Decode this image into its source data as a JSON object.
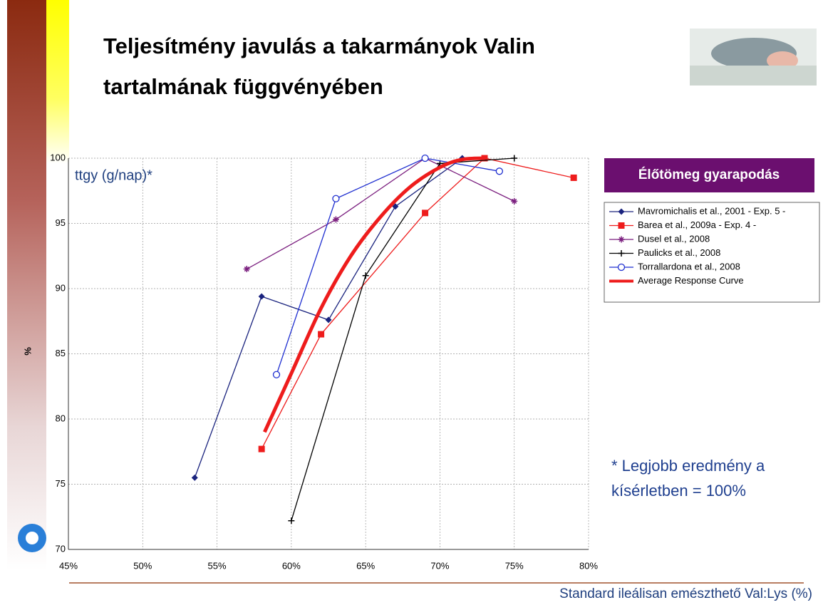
{
  "chart_data": {
    "type": "line",
    "title": "Teljesítmény javulás a takarmányok Valin tartalmának függvényében",
    "ylabel": "%",
    "xlabel": "Standard ileálisan emészthető Val:Lys (%)",
    "annotation": "ttgy (g/nap)*",
    "legend_title": "Élőtömeg gyarapodás",
    "footnote_lines": [
      "* Legjobb eredmény a",
      "kísérletben = 100%"
    ],
    "xlim": [
      45,
      80
    ],
    "xticks": [
      {
        "value": 45,
        "label": "45%"
      },
      {
        "value": 50,
        "label": "50%"
      },
      {
        "value": 55,
        "label": "55%"
      },
      {
        "value": 60,
        "label": "60%"
      },
      {
        "value": 65,
        "label": "65%"
      },
      {
        "value": 70,
        "label": "70%"
      },
      {
        "value": 75,
        "label": "75%"
      },
      {
        "value": 80,
        "label": "80%"
      }
    ],
    "ylim": [
      70,
      100
    ],
    "yticks": [
      70,
      75,
      80,
      85,
      90,
      95,
      100
    ],
    "grid": true,
    "legend": "right",
    "series": [
      {
        "name": "Mavromichalis et al., 2001 - Exp. 5 -",
        "color": "#1a237e",
        "marker": "diamond",
        "x": [
          53.5,
          58,
          62.5,
          67,
          71.5
        ],
        "values": [
          75.5,
          89.4,
          87.6,
          96.3,
          100
        ]
      },
      {
        "name": "Barea et al., 2009a - Exp. 4 -",
        "color": "#ee1c1c",
        "marker": "square",
        "x": [
          58,
          62,
          69,
          73,
          79
        ],
        "values": [
          77.7,
          86.5,
          95.8,
          100,
          98.5
        ]
      },
      {
        "name": "Dusel et al., 2008",
        "color": "#7b1f7f",
        "marker": "star",
        "x": [
          57,
          63,
          69,
          75
        ],
        "values": [
          91.5,
          95.3,
          100,
          96.7
        ]
      },
      {
        "name": "Paulicks et al., 2008",
        "color": "#000000",
        "marker": "plus",
        "x": [
          60,
          65,
          70,
          75
        ],
        "values": [
          72.2,
          91,
          99.6,
          100
        ]
      },
      {
        "name": "Torrallardona et al., 2008",
        "color": "#1f2fd0",
        "marker": "circle",
        "x": [
          59,
          63,
          69,
          74
        ],
        "values": [
          83.4,
          96.9,
          100,
          99
        ]
      },
      {
        "name": "Average Response Curve",
        "color": "#ee1c1c",
        "marker": "none",
        "x": [
          58.2,
          60,
          62,
          64,
          66,
          68,
          70,
          71.5,
          73
        ],
        "values": [
          79,
          83.5,
          88.5,
          92.5,
          95.5,
          97.8,
          99.3,
          99.9,
          100
        ]
      }
    ]
  }
}
